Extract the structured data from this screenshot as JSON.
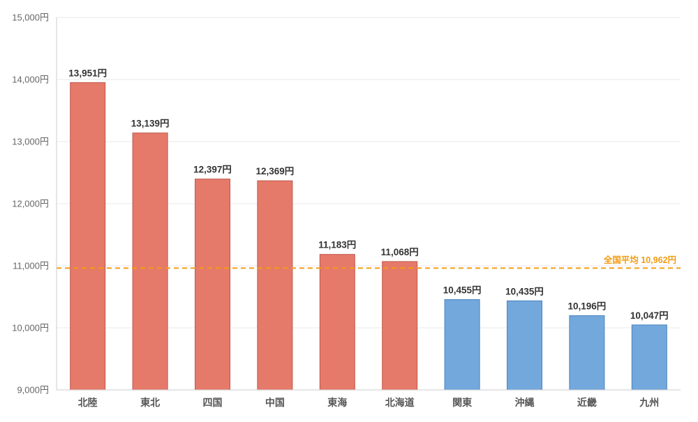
{
  "chart_data": {
    "type": "bar",
    "title": "",
    "xlabel": "",
    "ylabel": "",
    "categories": [
      "北陸",
      "東北",
      "四国",
      "中国",
      "東海",
      "北海道",
      "関東",
      "沖縄",
      "近畿",
      "九州"
    ],
    "values": [
      13951,
      13139,
      12397,
      12369,
      11183,
      11068,
      10455,
      10435,
      10196,
      10047
    ],
    "value_labels": [
      "13,951円",
      "13,139円",
      "12,397円",
      "12,369円",
      "11,183円",
      "11,068円",
      "10,455円",
      "10,435円",
      "10,196円",
      "10,047円"
    ],
    "ylim": [
      9000,
      15000
    ],
    "yticks": [
      9000,
      10000,
      11000,
      12000,
      13000,
      14000,
      15000
    ],
    "ytick_labels": [
      "9,000円",
      "10,000円",
      "11,000円",
      "12,000円",
      "13,000円",
      "14,000円",
      "15,000円"
    ],
    "grid": true,
    "reference_line": {
      "value": 10962,
      "label": "全国平均 10,962円",
      "color": "#f39c12",
      "style": "dashed"
    },
    "colors": {
      "above_average": "#e57a6a",
      "above_average_stroke": "#c0564a",
      "below_average": "#72a8dc",
      "below_average_stroke": "#4a82bd",
      "grid": "#e8e8e8",
      "axis": "#cccccc"
    }
  }
}
